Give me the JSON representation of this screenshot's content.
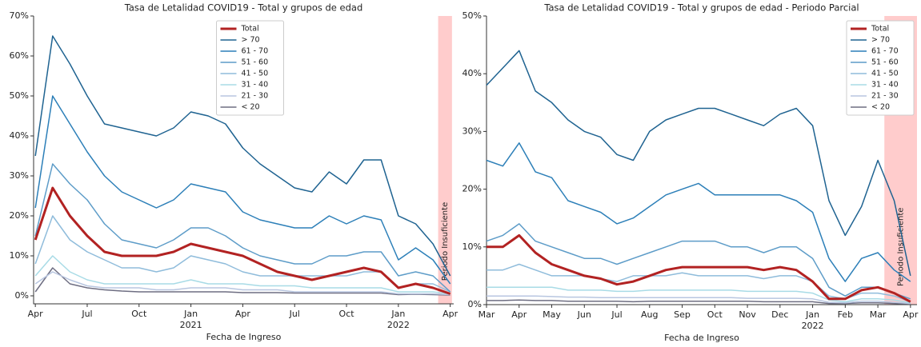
{
  "chart_data": [
    {
      "type": "line",
      "title": "Tasa de Letalidad COVID19 - Total y grupos de edad",
      "x_label": "Fecha de Ingreso",
      "x": [
        0,
        1,
        2,
        3,
        4,
        5,
        6,
        7,
        8,
        9,
        10,
        11,
        12,
        13,
        14,
        15,
        16,
        17,
        18,
        19,
        20,
        21,
        22,
        23,
        24
      ],
      "xlim": [
        -0.1,
        24.2
      ],
      "xticks": [
        {
          "value": 0,
          "label": "Apr"
        },
        {
          "value": 3,
          "label": "Jul"
        },
        {
          "value": 6,
          "label": "Oct"
        },
        {
          "value": 9,
          "label": "Jan"
        },
        {
          "value": 12,
          "label": "Apr"
        },
        {
          "value": 15,
          "label": "Jul"
        },
        {
          "value": 18,
          "label": "Oct"
        },
        {
          "value": 21,
          "label": "Jan"
        },
        {
          "value": 24,
          "label": "Apr"
        }
      ],
      "x_year_ticks": [
        {
          "value": 9,
          "label": "2021"
        },
        {
          "value": 21,
          "label": "2022"
        }
      ],
      "ylim": [
        -2,
        70
      ],
      "yticks": [
        {
          "value": 0,
          "label": "0%"
        },
        {
          "value": 10,
          "label": "10%"
        },
        {
          "value": 20,
          "label": "20%"
        },
        {
          "value": 30,
          "label": "30%"
        },
        {
          "value": 40,
          "label": "40%"
        },
        {
          "value": 50,
          "label": "50%"
        },
        {
          "value": 60,
          "label": "60%"
        },
        {
          "value": 70,
          "label": "70%"
        }
      ],
      "legend": "upper center",
      "shade": {
        "range": [
          23.3,
          24.1
        ],
        "color": "#ffcccc",
        "label": "Periodo Insuficiente"
      },
      "series": [
        {
          "name": "Total",
          "color": "#b22222",
          "width": 3,
          "values": [
            14,
            27,
            20,
            15,
            11,
            10,
            10,
            10,
            11,
            13,
            12,
            11,
            10,
            8,
            6,
            5,
            4,
            5,
            6,
            7,
            6,
            2,
            3,
            2,
            0.5
          ]
        },
        {
          "name": "> 70",
          "color": "#1f6391",
          "width": 1.5,
          "values": [
            35,
            65,
            58,
            50,
            43,
            42,
            41,
            40,
            42,
            46,
            45,
            43,
            37,
            33,
            30,
            27,
            26,
            31,
            28,
            34,
            34,
            20,
            18,
            13,
            5
          ]
        },
        {
          "name": "61 - 70",
          "color": "#2c7fb8",
          "width": 1.5,
          "values": [
            22,
            50,
            43,
            36,
            30,
            26,
            24,
            22,
            24,
            28,
            27,
            26,
            21,
            19,
            18,
            17,
            17,
            20,
            18,
            20,
            19,
            9,
            12,
            9,
            3
          ]
        },
        {
          "name": "51 - 60",
          "color": "#5d9cc8",
          "width": 1.5,
          "values": [
            15,
            33,
            28,
            24,
            18,
            14,
            13,
            12,
            14,
            17,
            17,
            15,
            12,
            10,
            9,
            8,
            8,
            10,
            10,
            11,
            11,
            5,
            6,
            5,
            1
          ]
        },
        {
          "name": "41 - 50",
          "color": "#8fbcdb",
          "width": 1.5,
          "values": [
            8,
            20,
            14,
            11,
            9,
            7,
            7,
            6,
            7,
            10,
            9,
            8,
            6,
            5,
            5,
            5,
            5,
            5,
            5,
            6,
            6,
            2,
            3,
            3,
            1
          ]
        },
        {
          "name": "31 - 40",
          "color": "#a8dbe6",
          "width": 1.5,
          "values": [
            5,
            10,
            6,
            4,
            3,
            3,
            3,
            3,
            3,
            4,
            3,
            3,
            3,
            2.5,
            2.5,
            2.5,
            2,
            2,
            2,
            2,
            2,
            1,
            1,
            1,
            0.5
          ]
        },
        {
          "name": "21 - 30",
          "color": "#b8c6e0",
          "width": 1.5,
          "values": [
            3,
            6,
            4,
            2.5,
            2,
            2,
            2,
            1.5,
            1.5,
            2,
            2,
            2,
            1.5,
            1.5,
            1.5,
            1,
            1,
            1,
            1,
            1,
            1,
            0.5,
            0.5,
            0.5,
            0.3
          ]
        },
        {
          "name": "< 20",
          "color": "#6e6e82",
          "width": 1.5,
          "values": [
            1,
            7,
            3,
            2,
            1.5,
            1.2,
            1,
            1,
            1,
            1,
            1,
            1,
            0.8,
            0.8,
            0.8,
            0.7,
            0.7,
            0.7,
            0.7,
            0.7,
            0.7,
            0.3,
            0.4,
            0.3,
            0.2
          ]
        }
      ]
    },
    {
      "type": "line",
      "title": "Tasa de Letalidad COVID19 - Total y grupos de edad - Periodo Parcial",
      "x_label": "Fecha de Ingreso",
      "x": [
        0,
        0.5,
        1,
        1.5,
        2,
        2.5,
        3,
        3.5,
        4,
        4.5,
        5,
        5.5,
        6,
        6.5,
        7,
        7.5,
        8,
        8.5,
        9,
        9.5,
        10,
        10.5,
        11,
        11.5,
        12,
        12.5,
        13
      ],
      "xlim": [
        0,
        13.2
      ],
      "xticks": [
        {
          "value": 0,
          "label": "Mar"
        },
        {
          "value": 1,
          "label": "Apr"
        },
        {
          "value": 2,
          "label": "May"
        },
        {
          "value": 3,
          "label": "Jun"
        },
        {
          "value": 4,
          "label": "Jul"
        },
        {
          "value": 5,
          "label": "Aug"
        },
        {
          "value": 6,
          "label": "Sep"
        },
        {
          "value": 7,
          "label": "Oct"
        },
        {
          "value": 8,
          "label": "Nov"
        },
        {
          "value": 9,
          "label": "Dec"
        },
        {
          "value": 10,
          "label": "Jan"
        },
        {
          "value": 11,
          "label": "Feb"
        },
        {
          "value": 12,
          "label": "Mar"
        },
        {
          "value": 13,
          "label": "Apr"
        }
      ],
      "x_year_ticks": [
        {
          "value": 10,
          "label": "2022"
        }
      ],
      "ylim": [
        0,
        50
      ],
      "yticks": [
        {
          "value": 0,
          "label": "0%"
        },
        {
          "value": 10,
          "label": "10%"
        },
        {
          "value": 20,
          "label": "20%"
        },
        {
          "value": 30,
          "label": "30%"
        },
        {
          "value": 40,
          "label": "40%"
        },
        {
          "value": 50,
          "label": "50%"
        }
      ],
      "legend": "upper right",
      "shade": {
        "range": [
          12.2,
          13.2
        ],
        "color": "#ffcccc",
        "label": "Periodo Insuficiente"
      },
      "series": [
        {
          "name": "Total",
          "color": "#b22222",
          "width": 3,
          "values": [
            10,
            10,
            12,
            9,
            7,
            6,
            5,
            4.5,
            3.5,
            4,
            5,
            6,
            6.5,
            6.5,
            6.5,
            6.5,
            6.5,
            6,
            6.5,
            6,
            4,
            1,
            1,
            2.5,
            3,
            2,
            0.5
          ]
        },
        {
          "name": "> 70",
          "color": "#1f6391",
          "width": 1.5,
          "values": [
            38,
            41,
            44,
            37,
            35,
            32,
            30,
            29,
            26,
            25,
            30,
            32,
            33,
            34,
            34,
            33,
            32,
            31,
            33,
            34,
            31,
            18,
            12,
            17,
            25,
            18,
            5
          ]
        },
        {
          "name": "61 - 70",
          "color": "#2c7fb8",
          "width": 1.5,
          "values": [
            25,
            24,
            28,
            23,
            22,
            18,
            17,
            16,
            14,
            15,
            17,
            19,
            20,
            21,
            19,
            19,
            19,
            19,
            19,
            18,
            16,
            8,
            4,
            8,
            9,
            6,
            4
          ]
        },
        {
          "name": "51 - 60",
          "color": "#5d9cc8",
          "width": 1.5,
          "values": [
            11,
            12,
            14,
            11,
            10,
            9,
            8,
            8,
            7,
            8,
            9,
            10,
            11,
            11,
            11,
            10,
            10,
            9,
            10,
            10,
            8,
            3,
            1.5,
            3,
            3,
            2,
            1
          ]
        },
        {
          "name": "41 - 50",
          "color": "#8fbcdb",
          "width": 1.5,
          "values": [
            6,
            6,
            7,
            6,
            5,
            5,
            5,
            4.5,
            4,
            5,
            5,
            5,
            5.5,
            5,
            5,
            5,
            5,
            4.5,
            5,
            5,
            4,
            1.5,
            1,
            2,
            2,
            1.5,
            0.5
          ]
        },
        {
          "name": "31 - 40",
          "color": "#a8dbe6",
          "width": 1.5,
          "values": [
            3,
            3,
            3,
            3,
            3,
            2.5,
            2.5,
            2.5,
            2.3,
            2.3,
            2.5,
            2.5,
            2.5,
            2.5,
            2.5,
            2.5,
            2.3,
            2.3,
            2.3,
            2.3,
            2,
            0.8,
            0.5,
            1,
            1,
            0.8,
            0.3
          ]
        },
        {
          "name": "21 - 30",
          "color": "#b8c6e0",
          "width": 1.5,
          "values": [
            1.5,
            1.5,
            1.5,
            1.5,
            1.4,
            1.3,
            1.3,
            1.2,
            1.2,
            1.2,
            1.2,
            1.2,
            1.2,
            1.2,
            1.2,
            1.2,
            1.1,
            1.1,
            1.1,
            1.1,
            1,
            0.4,
            0.3,
            0.6,
            0.6,
            0.4,
            0.2
          ]
        },
        {
          "name": "< 20",
          "color": "#6e6e82",
          "width": 1.5,
          "values": [
            0.7,
            0.7,
            0.8,
            0.7,
            0.7,
            0.6,
            0.6,
            0.6,
            0.6,
            0.5,
            0.6,
            0.6,
            0.6,
            0.6,
            0.6,
            0.6,
            0.6,
            0.5,
            0.5,
            0.5,
            0.5,
            0.2,
            0.2,
            0.3,
            0.3,
            0.2,
            0.1
          ]
        }
      ]
    }
  ]
}
